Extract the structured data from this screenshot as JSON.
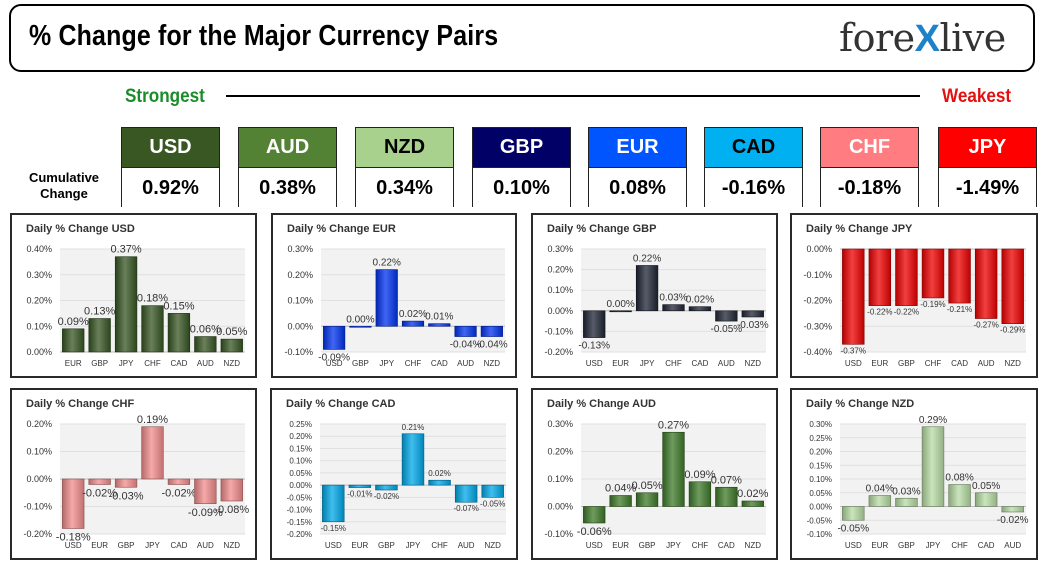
{
  "header": {
    "title": "% Change for the Major Currency Pairs"
  },
  "logo": {
    "part1": "fore",
    "part2": "X",
    "part3": "live"
  },
  "ranking": {
    "strongest_label": "Strongest",
    "weakest_label": "Weakest",
    "cumulative_label": "Cumulative Change"
  },
  "tiles": [
    {
      "currency": "USD",
      "value": "0.92%",
      "bg": "#385723",
      "fg": "#ffffff"
    },
    {
      "currency": "AUD",
      "value": "0.38%",
      "bg": "#548235",
      "fg": "#ffffff"
    },
    {
      "currency": "NZD",
      "value": "0.34%",
      "bg": "#a9d18e",
      "fg": "#000000"
    },
    {
      "currency": "GBP",
      "value": "0.10%",
      "bg": "#000066",
      "fg": "#ffffff"
    },
    {
      "currency": "EUR",
      "value": "0.08%",
      "bg": "#0055ff",
      "fg": "#ffffff"
    },
    {
      "currency": "CAD",
      "value": "-0.16%",
      "bg": "#00b0f0",
      "fg": "#000000"
    },
    {
      "currency": "CHF",
      "value": "-0.18%",
      "bg": "#ff7c80",
      "fg": "#ffffff"
    },
    {
      "currency": "JPY",
      "value": "-1.49%",
      "bg": "#ff0000",
      "fg": "#ffffff"
    }
  ],
  "chart_data": [
    {
      "type": "bar",
      "title": "Daily % Change USD",
      "categories": [
        "EUR",
        "GBP",
        "JPY",
        "CHF",
        "CAD",
        "AUD",
        "NZD"
      ],
      "values": [
        0.09,
        0.13,
        0.37,
        0.18,
        0.15,
        0.06,
        0.05
      ],
      "labels": [
        "0.09%",
        "0.13%",
        "0.37%",
        "0.18%",
        "0.15%",
        "0.06%",
        "0.05%"
      ],
      "ylim": [
        0,
        0.4
      ],
      "ticks": [
        0,
        0.1,
        0.2,
        0.3,
        0.4
      ],
      "tick_labels": [
        "0.00%",
        "0.10%",
        "0.20%",
        "0.30%",
        "0.40%"
      ],
      "color": "#375623",
      "label_size": 11
    },
    {
      "type": "bar",
      "title": "Daily % Change EUR",
      "categories": [
        "USD",
        "GBP",
        "JPY",
        "CHF",
        "CAD",
        "AUD",
        "NZD"
      ],
      "values": [
        -0.09,
        0.0,
        0.22,
        0.02,
        0.01,
        -0.04,
        -0.04
      ],
      "labels": [
        "-0.09%",
        "0.00%",
        "0.22%",
        "0.02%",
        "0.01%",
        "-0.04%",
        "-0.04%"
      ],
      "ylim": [
        -0.1,
        0.3
      ],
      "ticks": [
        -0.1,
        0,
        0.1,
        0.2,
        0.3
      ],
      "tick_labels": [
        "-0.10%",
        "0.00%",
        "0.10%",
        "0.20%",
        "0.30%"
      ],
      "color": "#0033ee",
      "label_size": 10
    },
    {
      "type": "bar",
      "title": "Daily % Change GBP",
      "categories": [
        "USD",
        "EUR",
        "JPY",
        "CHF",
        "CAD",
        "AUD",
        "NZD"
      ],
      "values": [
        -0.13,
        0.0,
        0.22,
        0.03,
        0.02,
        -0.05,
        -0.03
      ],
      "labels": [
        "-0.13%",
        "0.00%",
        "0.22%",
        "0.03%",
        "0.02%",
        "-0.05%",
        "-0.03%"
      ],
      "ylim": [
        -0.2,
        0.3
      ],
      "ticks": [
        -0.2,
        -0.1,
        0,
        0.1,
        0.2,
        0.3
      ],
      "tick_labels": [
        "-0.20%",
        "-0.10%",
        "0.00%",
        "0.10%",
        "0.20%",
        "0.30%"
      ],
      "color": "#1f2535",
      "label_size": 10
    },
    {
      "type": "bar",
      "title": "Daily % Change JPY",
      "categories": [
        "USD",
        "EUR",
        "GBP",
        "CHF",
        "CAD",
        "AUD",
        "NZD"
      ],
      "values": [
        -0.37,
        -0.22,
        -0.22,
        -0.19,
        -0.21,
        -0.27,
        -0.29
      ],
      "labels": [
        "-0.37%",
        "-0.22%",
        "-0.22%",
        "-0.19%",
        "-0.21%",
        "-0.27%",
        "-0.29%"
      ],
      "ylim": [
        -0.4,
        0
      ],
      "ticks": [
        -0.4,
        -0.3,
        -0.2,
        -0.1,
        0
      ],
      "tick_labels": [
        "-0.40%",
        "-0.30%",
        "-0.20%",
        "-0.10%",
        "0.00%"
      ],
      "color": "#ee0000",
      "label_size": 8
    },
    {
      "type": "bar",
      "title": "Daily % Change CHF",
      "categories": [
        "USD",
        "EUR",
        "GBP",
        "JPY",
        "CAD",
        "AUD",
        "NZD"
      ],
      "values": [
        -0.18,
        -0.02,
        -0.03,
        0.19,
        -0.02,
        -0.09,
        -0.08
      ],
      "labels": [
        "-0.18%",
        "-0.02%",
        "-0.03%",
        "0.19%",
        "-0.02%",
        "-0.09%",
        "-0.08%"
      ],
      "ylim": [
        -0.2,
        0.2
      ],
      "ticks": [
        -0.2,
        -0.1,
        0,
        0.1,
        0.2
      ],
      "tick_labels": [
        "-0.20%",
        "-0.10%",
        "0.00%",
        "0.10%",
        "0.20%"
      ],
      "color": "#f28c8c",
      "label_size": 11
    },
    {
      "type": "bar",
      "title": "Daily % Change CAD",
      "categories": [
        "USD",
        "EUR",
        "GBP",
        "JPY",
        "CHF",
        "AUD",
        "NZD"
      ],
      "values": [
        -0.15,
        -0.01,
        -0.02,
        0.21,
        0.02,
        -0.07,
        -0.05
      ],
      "labels": [
        "-0.15%",
        "-0.01%",
        "-0.02%",
        "0.21%",
        "0.02%",
        "-0.07%",
        "-0.05%"
      ],
      "ylim": [
        -0.2,
        0.25
      ],
      "ticks": [
        -0.2,
        -0.15,
        -0.1,
        -0.05,
        0,
        0.05,
        0.1,
        0.15,
        0.2,
        0.25
      ],
      "tick_labels": [
        "-0.20%",
        "-0.15%",
        "-0.10%",
        "-0.05%",
        "0.00%",
        "0.05%",
        "0.10%",
        "0.15%",
        "0.20%",
        "0.25%"
      ],
      "color": "#00a8e8",
      "label_size": 8
    },
    {
      "type": "bar",
      "title": "Daily % Change AUD",
      "categories": [
        "USD",
        "EUR",
        "GBP",
        "JPY",
        "CHF",
        "CAD",
        "NZD"
      ],
      "values": [
        -0.06,
        0.04,
        0.05,
        0.27,
        0.09,
        0.07,
        0.02
      ],
      "labels": [
        "-0.06%",
        "0.04%",
        "0.05%",
        "0.27%",
        "0.09%",
        "0.07%",
        "0.02%"
      ],
      "ylim": [
        -0.1,
        0.3
      ],
      "ticks": [
        -0.1,
        0,
        0.1,
        0.2,
        0.3
      ],
      "tick_labels": [
        "-0.10%",
        "0.00%",
        "0.10%",
        "0.20%",
        "0.30%"
      ],
      "color": "#3f7a2a",
      "label_size": 11
    },
    {
      "type": "bar",
      "title": "Daily % Change NZD",
      "categories": [
        "USD",
        "EUR",
        "GBP",
        "JPY",
        "CHF",
        "CAD",
        "AUD"
      ],
      "values": [
        -0.05,
        0.04,
        0.03,
        0.29,
        0.08,
        0.05,
        -0.02
      ],
      "labels": [
        "-0.05%",
        "0.04%",
        "0.03%",
        "0.29%",
        "0.08%",
        "0.05%",
        "-0.02%"
      ],
      "ylim": [
        -0.1,
        0.3
      ],
      "ticks": [
        -0.1,
        -0.05,
        0,
        0.05,
        0.1,
        0.15,
        0.2,
        0.25,
        0.3
      ],
      "tick_labels": [
        "-0.10%",
        "-0.05%",
        "0.00%",
        "0.05%",
        "0.10%",
        "0.15%",
        "0.20%",
        "0.25%",
        "0.30%"
      ],
      "color": "#b8dca4",
      "label_size": 10
    }
  ]
}
